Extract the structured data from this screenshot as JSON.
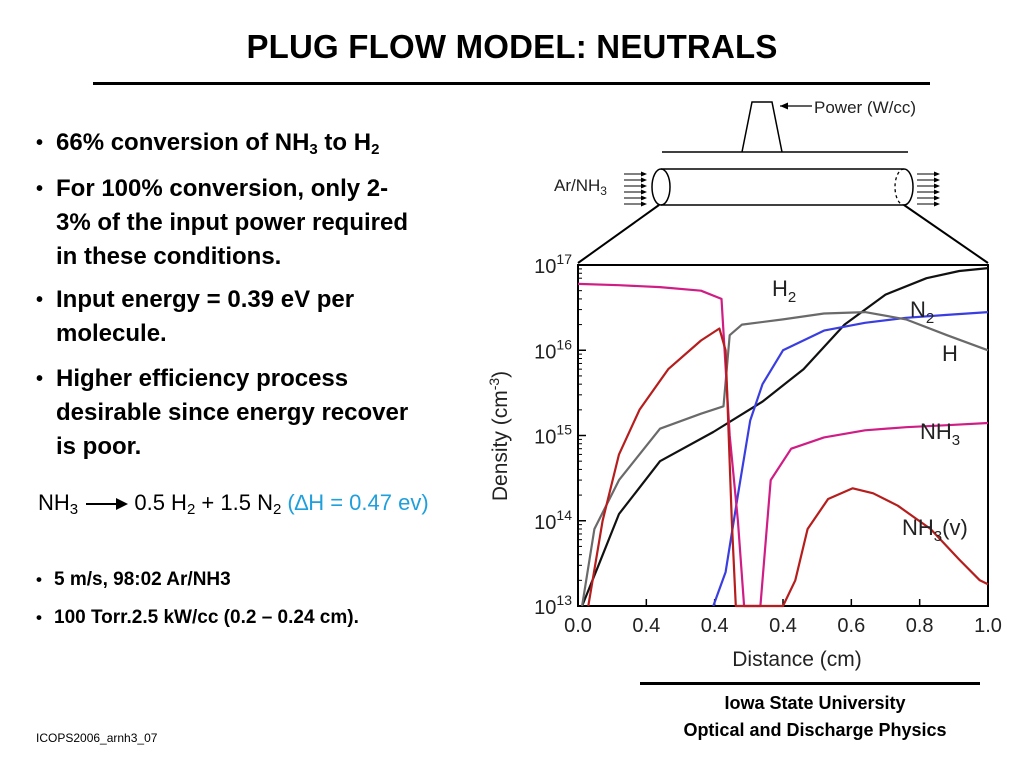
{
  "slide": {
    "title": "PLUG FLOW MODEL: NEUTRALS",
    "footer_id": "ICOPS2006_arnh3_07",
    "affiliation": [
      "Iowa State University",
      "Optical and Discharge Physics"
    ]
  },
  "bullets": [
    {
      "parts": [
        "66% conversion of NH",
        "3",
        " to H",
        "2"
      ]
    },
    {
      "lines": [
        "For 100% conversion, only 2-",
        "3% of the input power required",
        "in these conditions."
      ]
    },
    {
      "lines": [
        "Input energy = 0.39 eV per",
        "molecule."
      ]
    },
    {
      "lines": [
        "Higher efficiency process",
        "desirable since energy recover",
        "is poor."
      ]
    }
  ],
  "equation": {
    "lhs": "NH",
    "lhs_sub": "3",
    "rhs_a": " 0.5 H",
    "rhs_a_sub": "2",
    "rhs_b": " + 1.5 N",
    "rhs_b_sub": "2",
    "enthalpy": " (∆H = 0.47 ev)",
    "arrow_icon": "right-arrow-icon",
    "enthalpy_color": "#1f9fdc"
  },
  "conditions": [
    "5 m/s, 98:02 Ar/NH3",
    "100 Torr.2.5 kW/cc (0.2 – 0.24 cm)."
  ],
  "schematic": {
    "power_label": "Power (W/cc)",
    "inlet_label": "Ar/NH",
    "inlet_sub": "3"
  },
  "chart_data": {
    "type": "line",
    "xlabel": "Distance (cm)",
    "ylabel": "Density (cm-3)",
    "ylabel_parts": [
      "Density (cm",
      "-3",
      ")"
    ],
    "yscale": "log",
    "ylim": [
      10000000000000.0,
      1e+17
    ],
    "ytick_labels": [
      [
        "10",
        "17"
      ],
      [
        "10",
        "16"
      ],
      [
        "10",
        "15"
      ],
      [
        "10",
        "14"
      ],
      [
        "10",
        "13"
      ]
    ],
    "xtick_labels": [
      "0.0",
      "0.4",
      "0.4",
      "0.4",
      "0.6",
      "0.8",
      "1.0"
    ],
    "xtick_note": "Tick labels as printed; the segment 0.0-0.4 is zoomed into the discharge region.",
    "series": [
      {
        "name": "H2",
        "label": "H",
        "label_sub": "2",
        "color": "#111111",
        "points": [
          [
            0.01,
            10000000000000.0
          ],
          [
            0.05,
            30000000000000.0
          ],
          [
            0.1,
            120000000000000.0
          ],
          [
            0.2,
            500000000000000.0
          ],
          [
            0.33,
            1100000000000000.0
          ],
          [
            0.45,
            2500000000000000.0
          ],
          [
            0.55,
            6000000000000000.0
          ],
          [
            0.65,
            2e+16
          ],
          [
            0.75,
            4.5e+16
          ],
          [
            0.85,
            7e+16
          ],
          [
            0.93,
            8.5e+16
          ],
          [
            1.0,
            9.2e+16
          ]
        ]
      },
      {
        "name": "N2",
        "label": "N",
        "label_sub": "2",
        "color": "#3a3ee0",
        "points": [
          [
            0.33,
            10000000000000.0
          ],
          [
            0.36,
            25000000000000.0
          ],
          [
            0.39,
            200000000000000.0
          ],
          [
            0.42,
            1500000000000000.0
          ],
          [
            0.45,
            4000000000000000.0
          ],
          [
            0.5,
            1e+16
          ],
          [
            0.6,
            1.7e+16
          ],
          [
            0.7,
            2.1e+16
          ],
          [
            0.8,
            2.4e+16
          ],
          [
            0.9,
            2.6e+16
          ],
          [
            1.0,
            2.8e+16
          ]
        ]
      },
      {
        "name": "H",
        "label": "H",
        "color": "#6a6a6a",
        "points": [
          [
            0.01,
            10000000000000.0
          ],
          [
            0.04,
            80000000000000.0
          ],
          [
            0.1,
            300000000000000.0
          ],
          [
            0.2,
            1200000000000000.0
          ],
          [
            0.3,
            1800000000000000.0
          ],
          [
            0.355,
            2200000000000000.0
          ],
          [
            0.37,
            1.5e+16
          ],
          [
            0.4,
            2e+16
          ],
          [
            0.5,
            2.3e+16
          ],
          [
            0.6,
            2.7e+16
          ],
          [
            0.7,
            2.8e+16
          ],
          [
            0.8,
            2.3e+16
          ],
          [
            0.9,
            1.5e+16
          ],
          [
            1.0,
            1e+16
          ]
        ]
      },
      {
        "name": "NH3",
        "label": "NH",
        "label_sub": "3",
        "color": "#d01d86",
        "points": [
          [
            0.0,
            6e+16
          ],
          [
            0.1,
            5.8e+16
          ],
          [
            0.2,
            5.5e+16
          ],
          [
            0.3,
            5e+16
          ],
          [
            0.35,
            4e+16
          ],
          [
            0.37,
            1000000000000000.0
          ],
          [
            0.39,
            100000000000000.0
          ],
          [
            0.405,
            10000000000000.0
          ],
          [
            0.445,
            10000000000000.0
          ],
          [
            0.47,
            300000000000000.0
          ],
          [
            0.52,
            700000000000000.0
          ],
          [
            0.6,
            950000000000000.0
          ],
          [
            0.7,
            1150000000000000.0
          ],
          [
            0.8,
            1250000000000000.0
          ],
          [
            0.9,
            1320000000000000.0
          ],
          [
            1.0,
            1400000000000000.0
          ]
        ]
      },
      {
        "name": "NH3(v)",
        "label": "NH",
        "label_sub": "3",
        "label_suffix": "(v)",
        "color": "#b61d1d",
        "points": [
          [
            0.025,
            10000000000000.0
          ],
          [
            0.06,
            100000000000000.0
          ],
          [
            0.1,
            600000000000000.0
          ],
          [
            0.15,
            2000000000000000.0
          ],
          [
            0.22,
            6000000000000000.0
          ],
          [
            0.3,
            1.3e+16
          ],
          [
            0.345,
            1.8e+16
          ],
          [
            0.36,
            1e+16
          ],
          [
            0.375,
            100000000000000.0
          ],
          [
            0.385,
            10000000000000.0
          ],
          [
            0.5,
            10000000000000.0
          ],
          [
            0.53,
            20000000000000.0
          ],
          [
            0.56,
            80000000000000.0
          ],
          [
            0.61,
            180000000000000.0
          ],
          [
            0.67,
            240000000000000.0
          ],
          [
            0.72,
            210000000000000.0
          ],
          [
            0.78,
            150000000000000.0
          ],
          [
            0.86,
            80000000000000.0
          ],
          [
            0.93,
            35000000000000.0
          ],
          [
            0.98,
            20000000000000.0
          ],
          [
            1.0,
            18000000000000.0
          ]
        ]
      }
    ]
  }
}
